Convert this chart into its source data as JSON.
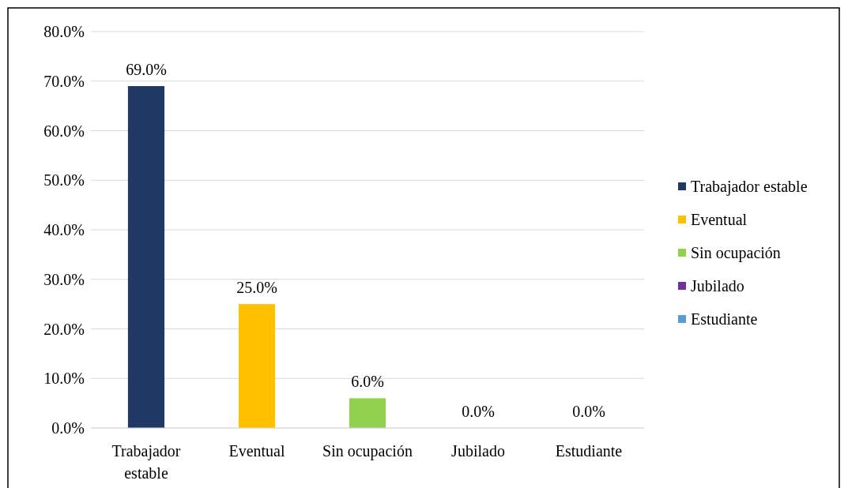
{
  "chart_data": {
    "type": "bar",
    "categories": [
      "Trabajador estable",
      "Eventual",
      "Sin ocupación",
      "Jubilado",
      "Estudiante"
    ],
    "series": [
      {
        "name": "Trabajador estable",
        "color": "#203864",
        "values": [
          69,
          null,
          null,
          null,
          null
        ],
        "value_labels": [
          "69.0%",
          null,
          null,
          null,
          null
        ]
      },
      {
        "name": "Eventual",
        "color": "#ffc000",
        "values": [
          null,
          25,
          null,
          null,
          null
        ],
        "value_labels": [
          null,
          "25.0%",
          null,
          null,
          null
        ]
      },
      {
        "name": "Sin ocupación",
        "color": "#92d050",
        "values": [
          null,
          null,
          6,
          null,
          null
        ],
        "value_labels": [
          null,
          null,
          "6.0%",
          null,
          null
        ]
      },
      {
        "name": "Jubilado",
        "color": "#7030a0",
        "values": [
          null,
          null,
          null,
          0,
          null
        ],
        "value_labels": [
          null,
          null,
          null,
          "0.0%",
          null
        ]
      },
      {
        "name": "Estudiante",
        "color": "#5b9bd5",
        "values": [
          null,
          null,
          null,
          null,
          0
        ],
        "value_labels": [
          null,
          null,
          null,
          null,
          "0.0%"
        ]
      }
    ],
    "ylim": [
      0,
      80
    ],
    "yticks": [
      {
        "value": 0,
        "label": "0.0%"
      },
      {
        "value": 10,
        "label": "10.0%"
      },
      {
        "value": 20,
        "label": "20.0%"
      },
      {
        "value": 30,
        "label": "30.0%"
      },
      {
        "value": 40,
        "label": "40.0%"
      },
      {
        "value": 50,
        "label": "50.0%"
      },
      {
        "value": 60,
        "label": "60.0%"
      },
      {
        "value": 70,
        "label": "70.0%"
      },
      {
        "value": 80,
        "label": "80.0%"
      }
    ],
    "grid": "y",
    "legend": "right"
  }
}
